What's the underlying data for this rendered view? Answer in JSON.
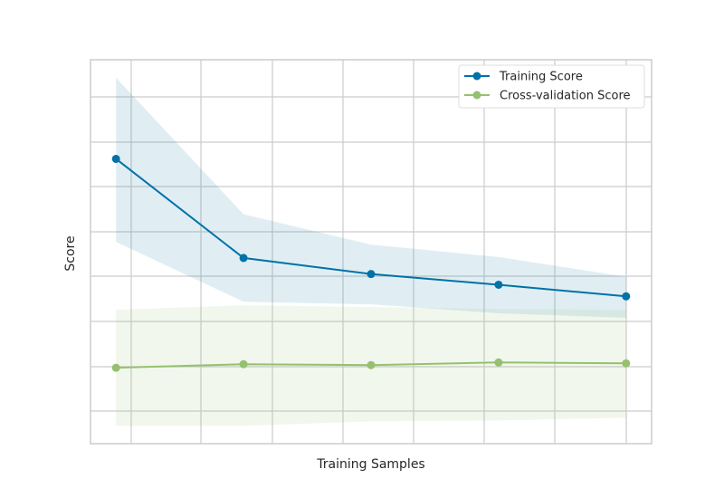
{
  "chart_data": {
    "type": "line",
    "title": "",
    "xlabel": "Training Samples",
    "ylabel": "Score",
    "x": [
      1,
      2,
      3,
      4,
      5
    ],
    "xlim": [
      0.8,
      5.2
    ],
    "ylim": [
      0.6,
      1.03
    ],
    "grid": true,
    "legend_position": "top-right",
    "series": [
      {
        "name": "Training Score",
        "color": "#0072a7",
        "values": [
          0.919,
          0.808,
          0.79,
          0.778,
          0.765
        ],
        "band_upper": [
          1.01,
          0.857,
          0.823,
          0.809,
          0.787
        ],
        "band_lower": [
          0.826,
          0.759,
          0.756,
          0.746,
          0.741
        ]
      },
      {
        "name": "Cross-validation Score",
        "color": "#95c16f",
        "values": [
          0.685,
          0.689,
          0.688,
          0.691,
          0.69
        ],
        "band_upper": [
          0.75,
          0.755,
          0.753,
          0.751,
          0.75
        ],
        "band_lower": [
          0.62,
          0.62,
          0.625,
          0.626,
          0.629
        ]
      }
    ]
  }
}
